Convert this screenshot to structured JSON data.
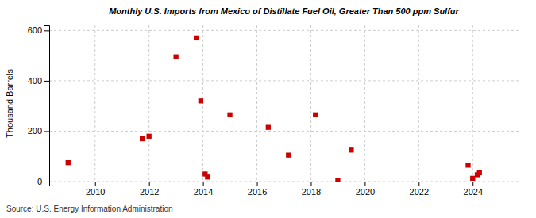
{
  "chart_data": {
    "type": "scatter",
    "title": "Monthly U.S. Imports from Mexico of Distillate Fuel Oil, Greater Than 500 ppm Sulfur",
    "ylabel": "Thousand Barrels",
    "annotations": [
      "Source: U.S. Energy Information Administration"
    ],
    "x": [
      2009.0,
      2011.75,
      2012.0,
      2013.0,
      2013.75,
      2013.92,
      2014.08,
      2014.17,
      2015.0,
      2016.42,
      2017.17,
      2018.17,
      2019.0,
      2019.5,
      2023.83,
      2024.0,
      2024.17,
      2024.25
    ],
    "values": [
      75,
      170,
      180,
      495,
      570,
      320,
      30,
      18,
      265,
      215,
      105,
      265,
      5,
      125,
      65,
      13,
      27,
      35
    ],
    "color": "#cc0000",
    "marker": "square",
    "xlim": [
      2008.3,
      2025.7
    ],
    "ylim": [
      0,
      620
    ],
    "xticks": [
      2010,
      2012,
      2014,
      2016,
      2018,
      2020,
      2022,
      2024
    ],
    "yticks": [
      0,
      200,
      400,
      600
    ],
    "grid": true
  }
}
